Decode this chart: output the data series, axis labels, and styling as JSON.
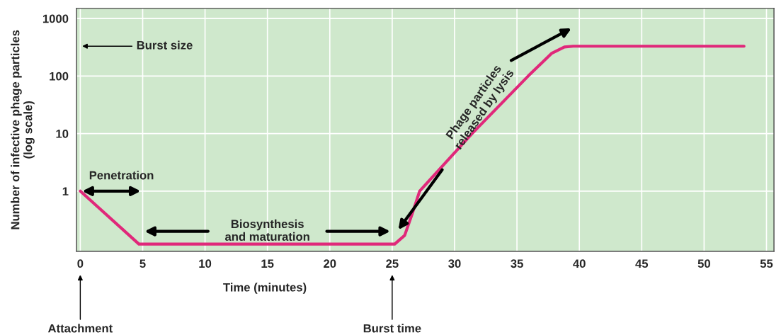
{
  "chart_data": {
    "type": "line",
    "xlabel": "Time (minutes)",
    "ylabel": "Number of infective phage particles\n(log scale)",
    "x": [
      0,
      4.7,
      25.2,
      26,
      26.6,
      27.2,
      31.4,
      35.9,
      37.8,
      38.8,
      39.5,
      53.2
    ],
    "series": [
      {
        "color": "#e0287a",
        "values": [
          1,
          0.12,
          0.12,
          0.17,
          0.4,
          1,
          10,
          100,
          250,
          320,
          330,
          330
        ]
      }
    ],
    "log": true,
    "xlim": [
      -0.3,
      55.6
    ],
    "ylim": [
      0.09,
      1500
    ],
    "xticks": [
      0,
      5,
      10,
      15,
      20,
      25,
      30,
      35,
      40,
      45,
      50,
      55
    ],
    "yticks": [
      1,
      10,
      100,
      1000
    ],
    "grid": true,
    "legend": false,
    "marker": "none",
    "line_style": "solid",
    "annotations": [
      "Burst size",
      "Penetration",
      "Biosynthesis\nand maturation",
      "Phage particles\nreleased by lysis",
      "Attachment",
      "Burst time"
    ]
  }
}
